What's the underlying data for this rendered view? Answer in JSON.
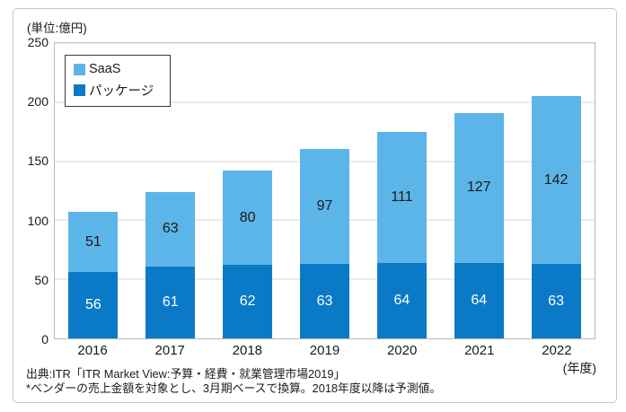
{
  "unit_label": "(単位:億円)",
  "chart_data": {
    "type": "bar",
    "stacked": true,
    "title": "",
    "categories": [
      "2016",
      "2017",
      "2018",
      "2019",
      "2020",
      "2021",
      "2022"
    ],
    "series": [
      {
        "name": "SaaS",
        "key": "saas",
        "color": "#5cb5e8",
        "label_color": "#1a1a1a",
        "values": [
          51,
          63,
          80,
          97,
          111,
          127,
          142
        ]
      },
      {
        "name": "パッケージ",
        "key": "package",
        "color": "#0b7ac6",
        "label_color": "#ffffff",
        "values": [
          56,
          61,
          62,
          63,
          64,
          64,
          63
        ]
      }
    ],
    "ylim": [
      0,
      250
    ],
    "yticks": [
      0,
      50,
      100,
      150,
      200,
      250
    ],
    "ylabel": "(単位:億円)",
    "xlabel_suffix": "(年度)",
    "legend_position": "top-left",
    "grid": "horizontal"
  },
  "source": {
    "line1": "出典:ITR「ITR Market View:予算・経費・就業管理市場2019」",
    "line2": "*ベンダーの売上金額を対象とし、3月期ベースで換算。2018年度以降は予測値。"
  },
  "colors": {
    "saas": "#5cb5e8",
    "package": "#0b7ac6",
    "gridline": "#d4d4d4",
    "plot_border": "#b9b9b9",
    "panel_border": "#c6c6c6",
    "legend_border": "#3a3a3a",
    "text": "#1a1a1a"
  }
}
